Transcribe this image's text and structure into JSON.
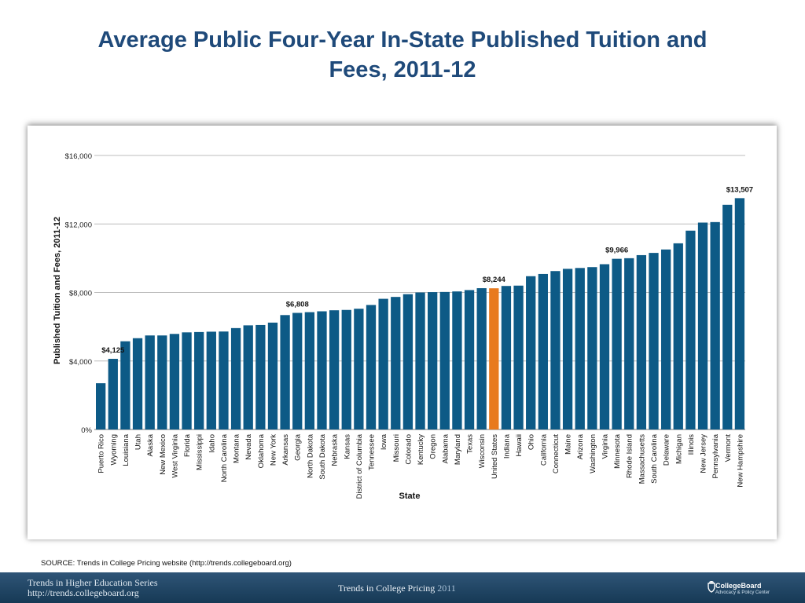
{
  "title": {
    "line1": "Average Public Four-Year In-State Published Tuition and",
    "line2": "Fees, 2011-12"
  },
  "source": "SOURCE: Trends in College Pricing website (http://trends.collegeboard.org)",
  "footer": {
    "series_line1": "Trends in Higher Education Series",
    "series_line2": "http://trends.collegeboard.org",
    "center_text": "Trends in College Pricing",
    "center_year": "2011",
    "logo_name": "CollegeBoard",
    "logo_sub": "Advocacy & Policy Center"
  },
  "colors": {
    "bar": "#0d5a86",
    "highlight": "#e87a1e",
    "title": "#1f4a7a"
  },
  "chart_data": {
    "type": "bar",
    "title": "",
    "xlabel": "State",
    "ylabel": "Published Tuition and Fees, 2011-12",
    "ylim": [
      0,
      16000
    ],
    "yticks": [
      0,
      4000,
      8000,
      12000,
      16000
    ],
    "ytick_labels": [
      "0%",
      "$4,000",
      "$8,000",
      "$12,000",
      "$16,000"
    ],
    "grid": true,
    "categories": [
      "Puerto Rico",
      "Wyoming",
      "Louisiana",
      "Utah",
      "Alaska",
      "New Mexico",
      "West Virginia",
      "Florida",
      "Mississippi",
      "Idaho",
      "North Carolina",
      "Montana",
      "Nevada",
      "Oklahoma",
      "New York",
      "Arkansas",
      "Georgia",
      "North Dakota",
      "South Dakota",
      "Nebraska",
      "Kansas",
      "District of Columbia",
      "Tennessee",
      "Iowa",
      "Missouri",
      "Colorado",
      "Kentucky",
      "Oregon",
      "Alabama",
      "Maryland",
      "Texas",
      "Wisconsin",
      "United States",
      "Indiana",
      "Hawaii",
      "Ohio",
      "California",
      "Connecticut",
      "Maine",
      "Arizona",
      "Washington",
      "Virginia",
      "Minnesota",
      "Rhode Island",
      "Massachusetts",
      "South Carolina",
      "Delaware",
      "Michigan",
      "Illinois",
      "New Jersey",
      "Pennsylvania",
      "Vermont",
      "New Hampshire"
    ],
    "values": [
      2700,
      4125,
      5150,
      5330,
      5490,
      5490,
      5580,
      5670,
      5690,
      5710,
      5720,
      5920,
      6080,
      6100,
      6240,
      6680,
      6808,
      6850,
      6900,
      6960,
      6980,
      7050,
      7270,
      7630,
      7740,
      7900,
      8000,
      8020,
      8030,
      8060,
      8140,
      8250,
      8244,
      8380,
      8400,
      8950,
      9080,
      9250,
      9380,
      9430,
      9480,
      9650,
      9966,
      10000,
      10180,
      10310,
      10510,
      10870,
      11610,
      12080,
      12110,
      13120,
      13507
    ],
    "highlight_category": "United States",
    "annotations": [
      {
        "category": "Wyoming",
        "label": "$4,125"
      },
      {
        "category": "Georgia",
        "label": "$6,808"
      },
      {
        "category": "United States",
        "label": "$8,244"
      },
      {
        "category": "Minnesota",
        "label": "$9,966"
      },
      {
        "category": "New Hampshire",
        "label": "$13,507"
      }
    ]
  }
}
